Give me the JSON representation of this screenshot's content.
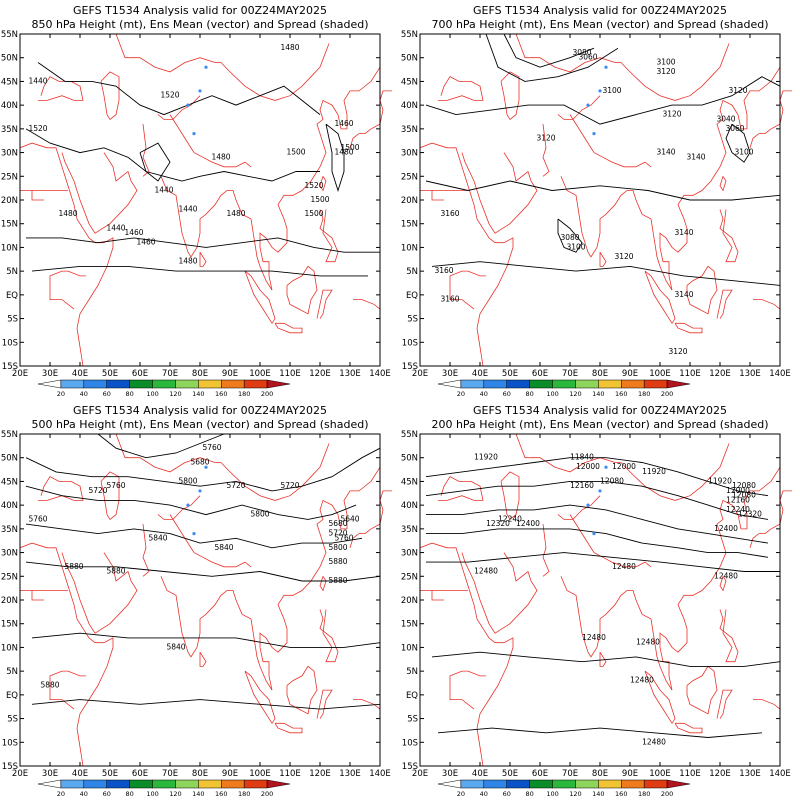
{
  "panels": [
    {
      "title": "GEFS T1534 Analysis valid for 00Z24MAY2025",
      "subtitle": "850 hPa Height (mt), Ens Mean (vector) and Spread (shaded)",
      "contour_labels": [
        "1480",
        "1520",
        "1480",
        "1440",
        "1440",
        "1480",
        "1460",
        "1440",
        "1460",
        "1520",
        "1500",
        "1440",
        "1480",
        "1500",
        "1480",
        "1460",
        "1520",
        "1500",
        "1480",
        "1500"
      ]
    },
    {
      "title": "GEFS T1534 Analysis valid for 00Z24MAY2025",
      "subtitle": "700 hPa Height (mt), Ens Mean (vector) and Spread (shaded)",
      "contour_labels": [
        "3100",
        "3060",
        "3080",
        "3120",
        "3100",
        "3120",
        "3040",
        "3060",
        "3100",
        "3120",
        "3140",
        "3140",
        "3120",
        "3160",
        "3080",
        "3100",
        "3120",
        "3140",
        "3160",
        "3160",
        "3140",
        "3120"
      ]
    },
    {
      "title": "GEFS T1534 Analysis valid for 00Z24MAY2025",
      "subtitle": "500 hPa Height (mt), Ens Mean (vector) and Spread (shaded)",
      "contour_labels": [
        "5760",
        "5680",
        "5720",
        "5720",
        "5760",
        "5800",
        "5720",
        "5800",
        "5760",
        "5640",
        "5680",
        "5720",
        "5760",
        "5800",
        "5840",
        "5840",
        "5880",
        "5880",
        "5880",
        "5840",
        "5880",
        "5880"
      ]
    },
    {
      "title": "GEFS T1534 Analysis valid for 00Z24MAY2025",
      "subtitle": "200 hPa Height (mt), Ens Mean (vector) and Spread (shaded)",
      "contour_labels": [
        "11920",
        "11840",
        "12000",
        "12000",
        "11920",
        "12080",
        "12080",
        "12160",
        "11920",
        "12000",
        "12080",
        "12160",
        "12240",
        "12320",
        "12400",
        "12240",
        "12320",
        "12400",
        "12480",
        "12480",
        "12480",
        "12480",
        "12480",
        "12480",
        "12480"
      ]
    }
  ],
  "lon_labels": [
    "20E",
    "30E",
    "40E",
    "50E",
    "60E",
    "70E",
    "80E",
    "90E",
    "100E",
    "110E",
    "120E",
    "130E",
    "140E"
  ],
  "lat_labels": [
    "55N",
    "50N",
    "45N",
    "40N",
    "35N",
    "30N",
    "25N",
    "20N",
    "15N",
    "10N",
    "5N",
    "EQ",
    "5S",
    "10S",
    "15S"
  ],
  "colorbar": {
    "labels": [
      "20",
      "40",
      "60",
      "80",
      "100",
      "120",
      "140",
      "160",
      "180",
      "200"
    ],
    "colors": [
      "#ffffff",
      "#5aa9f0",
      "#2f86e6",
      "#0a52c8",
      "#0a8c28",
      "#2ab83a",
      "#8fd45a",
      "#f0c434",
      "#f07a1e",
      "#e03c14",
      "#b4141e"
    ]
  },
  "colors": {
    "coast": "#e8322a",
    "contour": "#000000",
    "spread": "#3c8cf0"
  }
}
